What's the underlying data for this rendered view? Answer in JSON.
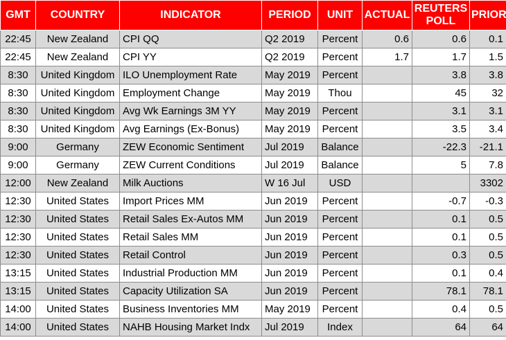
{
  "headers": {
    "gmt": "GMT",
    "country": "COUNTRY",
    "indicator": "INDICATOR",
    "period": "PERIOD",
    "unit": "UNIT",
    "actual": "ACTUAL",
    "poll": "REUTERS POLL",
    "prior": "PRIOR"
  },
  "rows": [
    {
      "gmt": "22:45",
      "country": "New Zealand",
      "indicator": "CPI QQ",
      "period": "Q2 2019",
      "unit": "Percent",
      "actual": "0.6",
      "poll": "0.6",
      "prior": "0.1"
    },
    {
      "gmt": "22:45",
      "country": "New Zealand",
      "indicator": "CPI YY",
      "period": "Q2 2019",
      "unit": "Percent",
      "actual": "1.7",
      "poll": "1.7",
      "prior": "1.5"
    },
    {
      "gmt": "8:30",
      "country": "United Kingdom",
      "indicator": "ILO Unemployment Rate",
      "period": "May 2019",
      "unit": "Percent",
      "actual": "",
      "poll": "3.8",
      "prior": "3.8"
    },
    {
      "gmt": "8:30",
      "country": "United Kingdom",
      "indicator": "Employment Change",
      "period": "May 2019",
      "unit": "Thou",
      "actual": "",
      "poll": "45",
      "prior": "32"
    },
    {
      "gmt": "8:30",
      "country": "United Kingdom",
      "indicator": "Avg Wk Earnings 3M YY",
      "period": "May 2019",
      "unit": "Percent",
      "actual": "",
      "poll": "3.1",
      "prior": "3.1"
    },
    {
      "gmt": "8:30",
      "country": "United Kingdom",
      "indicator": "Avg Earnings (Ex-Bonus)",
      "period": "May 2019",
      "unit": "Percent",
      "actual": "",
      "poll": "3.5",
      "prior": "3.4"
    },
    {
      "gmt": "9:00",
      "country": "Germany",
      "indicator": "ZEW Economic Sentiment",
      "period": "Jul 2019",
      "unit": "Balance",
      "actual": "",
      "poll": "-22.3",
      "prior": "-21.1"
    },
    {
      "gmt": "9:00",
      "country": "Germany",
      "indicator": "ZEW Current Conditions",
      "period": "Jul 2019",
      "unit": "Balance",
      "actual": "",
      "poll": "5",
      "prior": "7.8"
    },
    {
      "gmt": "12:00",
      "country": "New Zealand",
      "indicator": "Milk Auctions",
      "period": "W 16 Jul",
      "unit": "USD",
      "actual": "",
      "poll": "",
      "prior": "3302"
    },
    {
      "gmt": "12:30",
      "country": "United States",
      "indicator": "Import Prices MM",
      "period": "Jun 2019",
      "unit": "Percent",
      "actual": "",
      "poll": "-0.7",
      "prior": "-0.3"
    },
    {
      "gmt": "12:30",
      "country": "United States",
      "indicator": "Retail Sales Ex-Autos MM",
      "period": "Jun 2019",
      "unit": "Percent",
      "actual": "",
      "poll": "0.1",
      "prior": "0.5"
    },
    {
      "gmt": "12:30",
      "country": "United States",
      "indicator": "Retail Sales MM",
      "period": "Jun 2019",
      "unit": "Percent",
      "actual": "",
      "poll": "0.1",
      "prior": "0.5"
    },
    {
      "gmt": "12:30",
      "country": "United States",
      "indicator": "Retail Control",
      "period": "Jun 2019",
      "unit": "Percent",
      "actual": "",
      "poll": "0.3",
      "prior": "0.5"
    },
    {
      "gmt": "13:15",
      "country": "United States",
      "indicator": "Industrial Production MM",
      "period": "Jun 2019",
      "unit": "Percent",
      "actual": "",
      "poll": "0.1",
      "prior": "0.4"
    },
    {
      "gmt": "13:15",
      "country": "United States",
      "indicator": "Capacity Utilization SA",
      "period": "Jun 2019",
      "unit": "Percent",
      "actual": "",
      "poll": "78.1",
      "prior": "78.1"
    },
    {
      "gmt": "14:00",
      "country": "United States",
      "indicator": "Business Inventories MM",
      "period": "May 2019",
      "unit": "Percent",
      "actual": "",
      "poll": "0.4",
      "prior": "0.5"
    },
    {
      "gmt": "14:00",
      "country": "United States",
      "indicator": "NAHB Housing Market Indx",
      "period": "Jul 2019",
      "unit": "Index",
      "actual": "",
      "poll": "64",
      "prior": "64"
    }
  ]
}
